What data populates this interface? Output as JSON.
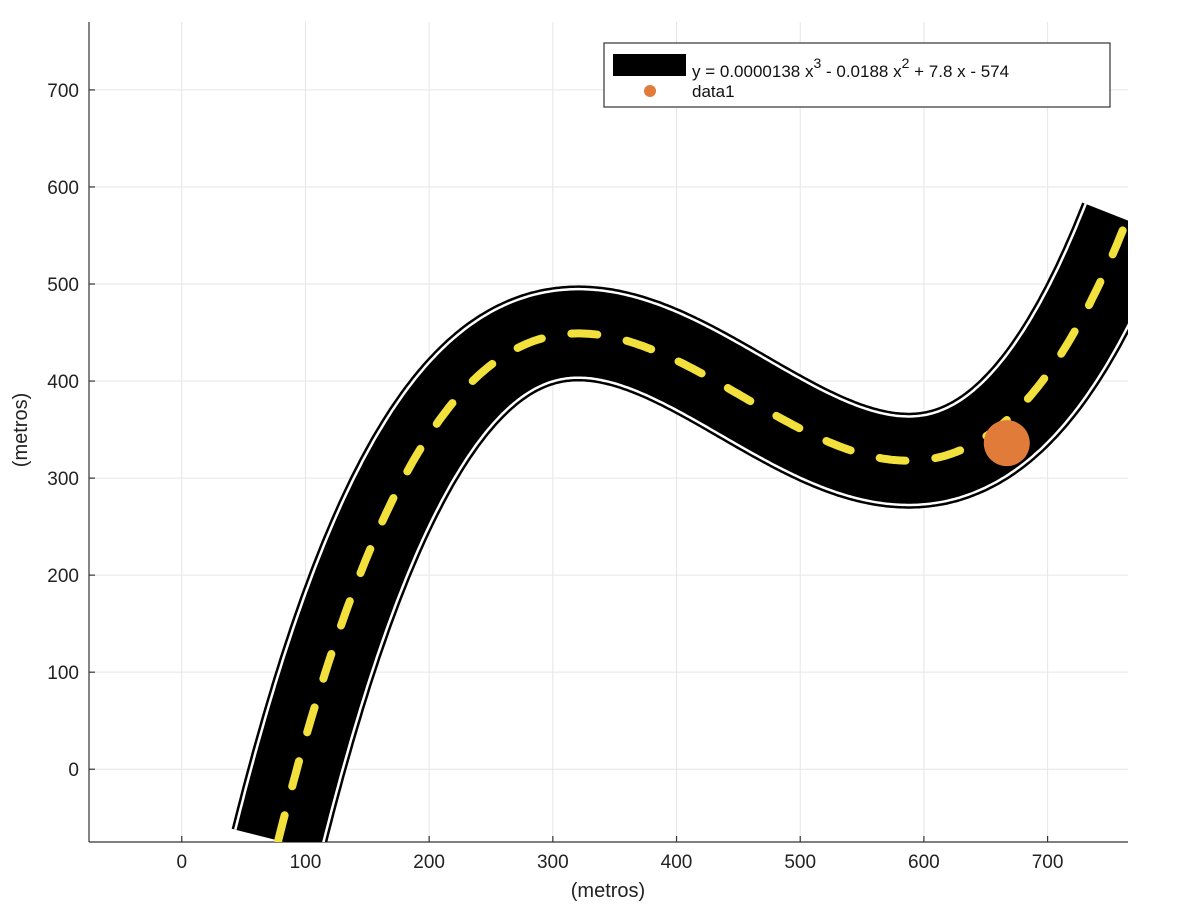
{
  "chart_data": {
    "type": "line",
    "xlabel": "(metros)",
    "ylabel": "(metros)",
    "xlim": [
      -75,
      765
    ],
    "ylim": [
      -75,
      770
    ],
    "xticks": [
      0,
      100,
      200,
      300,
      400,
      500,
      600,
      700
    ],
    "yticks": [
      0,
      100,
      200,
      300,
      400,
      500,
      600,
      700
    ],
    "grid": true,
    "legend_placement": "top-right",
    "series": [
      {
        "name": "y = 0.0000138 x^3 - 0.0188 x^2 + 7.8 x - 574",
        "style": "road",
        "color": "#000000",
        "lane_marking_color": "#f2e03c",
        "edge_color": "#ffffff",
        "coefficients": [
          1.38e-05,
          -0.0188,
          7.8,
          -574
        ],
        "x_range": [
          78,
          765
        ]
      },
      {
        "name": "data1",
        "style": "marker",
        "color": "#e07b39",
        "x": [
          667
        ],
        "y": [
          336
        ]
      }
    ],
    "legend": {
      "entries": [
        {
          "text": "y = 0.0000138 x",
          "sup1": "3",
          "mid": " - 0.0188 x",
          "sup2": "2",
          "tail": " + 7.8 x - 574"
        },
        {
          "text": "data1"
        }
      ]
    }
  }
}
